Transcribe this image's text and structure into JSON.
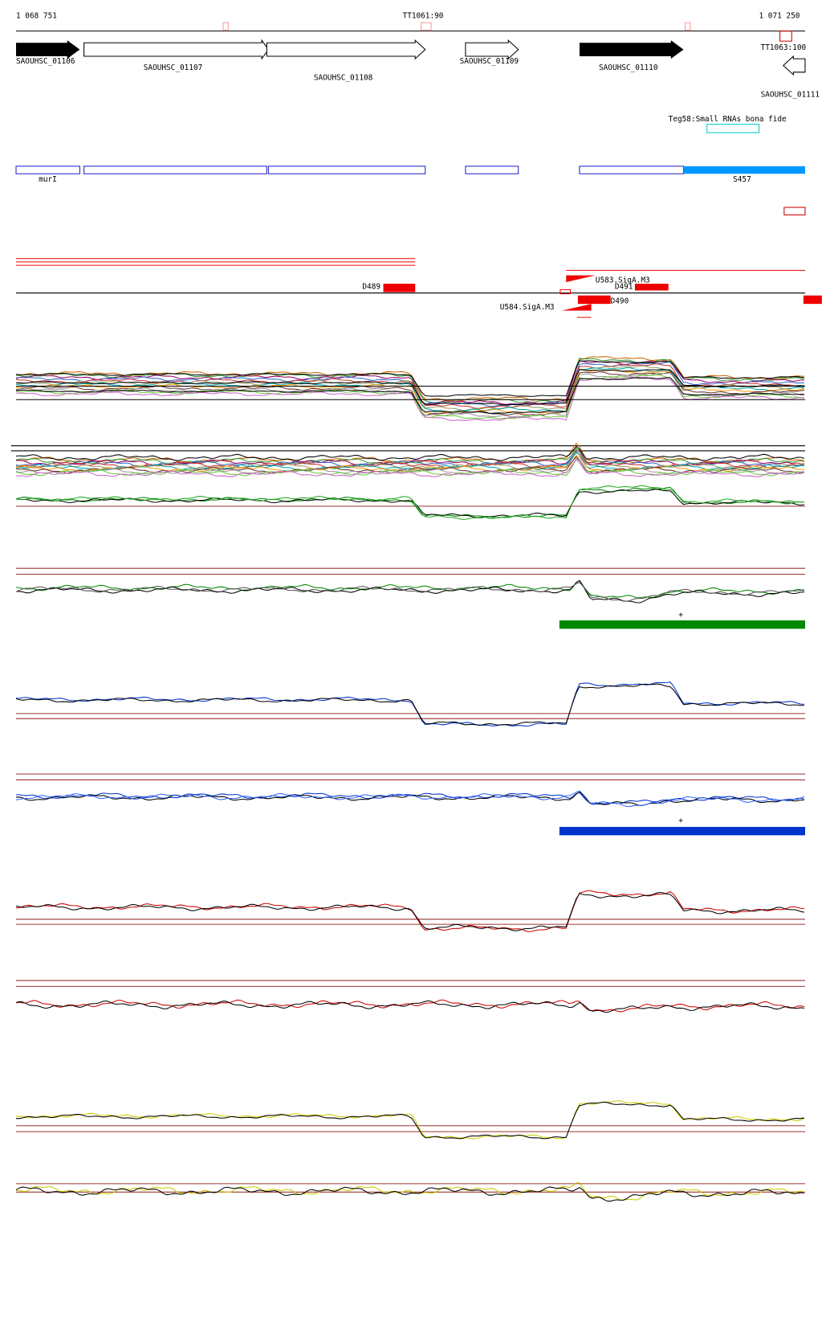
{
  "ruler": {
    "start": "1 068 751",
    "end": "1 071 250",
    "terminators": [
      "TT1061:90",
      "TT1063:100"
    ]
  },
  "genes": [
    "SAOUHSC_01106",
    "SAOUHSC_01107",
    "SAOUHSC_01108",
    "SAOUHSC_01109",
    "SAOUHSC_01110",
    "SAOUHSC_01111"
  ],
  "srna": {
    "label": "Teg58:Small RNAs bona fide"
  },
  "operons": [
    "murI",
    "S457"
  ],
  "features": [
    "D489",
    "U583.SigA.M3",
    "D491",
    "D490",
    "U584.SigA.M3"
  ],
  "plus_marks": [
    "+",
    "+"
  ]
}
